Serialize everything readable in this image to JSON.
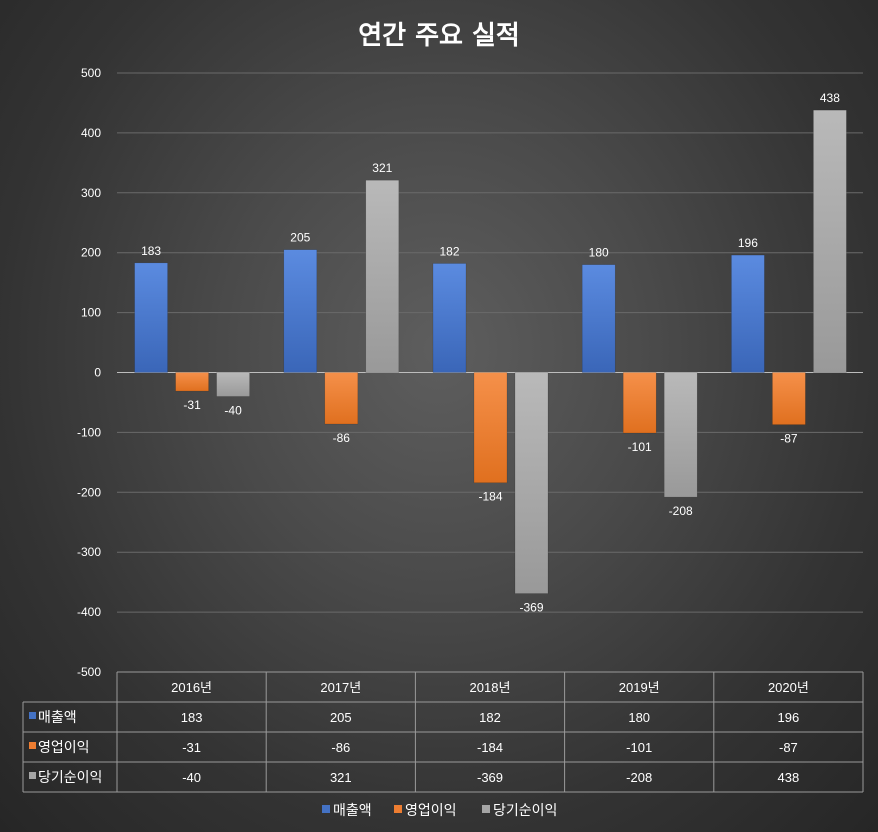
{
  "chart_data": {
    "type": "bar",
    "title": "연간 주요 실적",
    "categories": [
      "2016년",
      "2017년",
      "2018년",
      "2019년",
      "2020년"
    ],
    "series": [
      {
        "name": "매출액",
        "color": "#4472c4",
        "values": [
          183,
          205,
          182,
          180,
          196
        ]
      },
      {
        "name": "영업이익",
        "color": "#ed7d31",
        "values": [
          -31,
          -86,
          -184,
          -101,
          -87
        ]
      },
      {
        "name": "당기순이익",
        "color": "#a5a5a5",
        "values": [
          -40,
          321,
          -369,
          -208,
          438
        ]
      }
    ],
    "ylim": [
      -500,
      500
    ],
    "yticks": [
      500,
      400,
      300,
      200,
      100,
      0,
      -100,
      -200,
      -300,
      -400,
      -500
    ],
    "grid": true,
    "data_table": true,
    "legend_position": "bottom"
  }
}
